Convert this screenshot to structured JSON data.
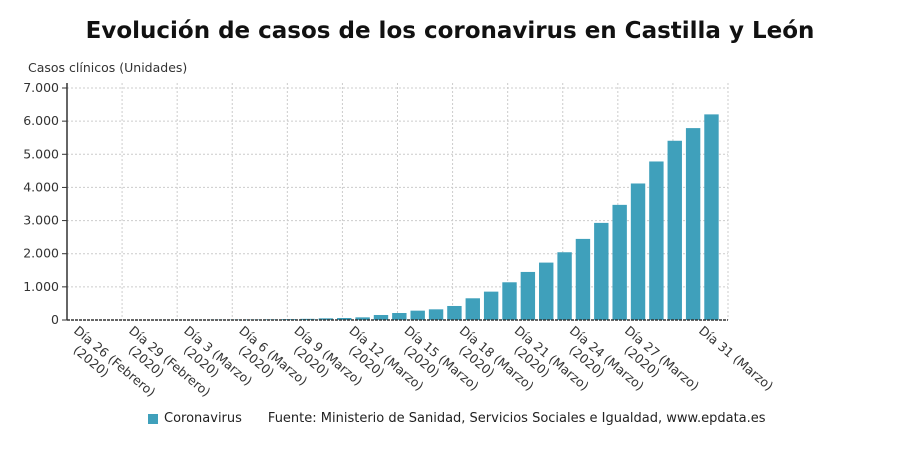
{
  "chart_data": {
    "type": "bar",
    "title": "Evolución de casos de los coronavirus en Castilla y León",
    "ylabel": "Casos clínicos (Unidades)",
    "xlabel": "",
    "ylim": [
      0,
      7000
    ],
    "yticks": [
      "0",
      "1.000",
      "2.000",
      "3.000",
      "4.000",
      "5.000",
      "6.000",
      "7.000"
    ],
    "grid": true,
    "legend_position": "bottom",
    "color": "#3fa0bb",
    "tick_labels": [
      [
        "Día 26 (Febrero)",
        "(2020)"
      ],
      [
        "Día 29 (Febrero)",
        "(2020)"
      ],
      [
        "Día 3 (Marzo)",
        "(2020)"
      ],
      [
        "Día 6 (Marzo)",
        "(2020)"
      ],
      [
        "Día 9 (Marzo)",
        "(2020)"
      ],
      [
        "Día 12 (Marzo)",
        "(2020)"
      ],
      [
        "Día 15 (Marzo)",
        "(2020)"
      ],
      [
        "Día 18 (Marzo)",
        "(2020)"
      ],
      [
        "Día 21 (Marzo)",
        "(2020)"
      ],
      [
        "Día 24 (Marzo)",
        "(2020)"
      ],
      [
        "Día 27 (Marzo)",
        "(2020)"
      ],
      [
        "Día 31 (Marzo)"
      ]
    ],
    "series": [
      {
        "name": "Coronavirus",
        "values": [
          0,
          0,
          0,
          0,
          2,
          3,
          3,
          8,
          11,
          13,
          18,
          25,
          35,
          50,
          60,
          80,
          151,
          211,
          282,
          322,
          423,
          655,
          856,
          1138,
          1450,
          1732,
          2044,
          2447,
          2930,
          3474,
          4119,
          4783,
          5408,
          5790,
          6204
        ]
      }
    ]
  },
  "legend": {
    "series_label": "Coronavirus"
  },
  "source": "Fuente: Ministerio de Sanidad, Servicios Sociales e Igualdad, www.epdata.es"
}
